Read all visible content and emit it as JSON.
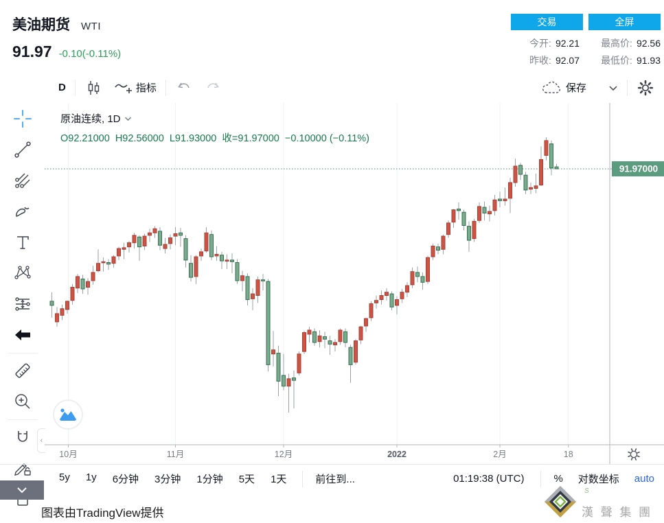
{
  "header": {
    "title": "美油期货",
    "symbol": "WTI",
    "price": "91.97",
    "change": "-0.10(-0.11%)",
    "change_color": "#2b9e58",
    "buttons": {
      "trade": "交易",
      "fullscreen": "全屏",
      "button_color": "#10a7ea"
    },
    "stats": [
      {
        "label": "今开:",
        "value": "92.21"
      },
      {
        "label": "最高价:",
        "value": "92.56"
      },
      {
        "label": "昨收:",
        "value": "92.07"
      },
      {
        "label": "最低价:",
        "value": "91.93"
      }
    ]
  },
  "toolbar": {
    "interval": "D",
    "indicators_label": "指标",
    "save_label": "保存",
    "icons": [
      "candlestick-style-icon",
      "indicator-icon",
      "undo-icon",
      "redo-icon",
      "cloud-icon",
      "chevron-down-icon",
      "gear-icon"
    ]
  },
  "sidebar": {
    "tools": [
      "crosshair",
      "trend-line",
      "gann-tools",
      "brush",
      "text-tool",
      "xabcd-pattern",
      "forecast",
      "arrow-marker",
      "ruler",
      "zoom-in",
      "magnet",
      "drawing-lock",
      "lock"
    ]
  },
  "legend": {
    "series": "原油连续, 1D",
    "ohlc": "O92.21000  H92.56000  L91.93000  收=91.97000  −0.10000 (−0.11%)"
  },
  "price_axis": {
    "last_label": "91.97000",
    "label_bg": "#5a9c7d"
  },
  "bottom_bar": {
    "ranges": [
      "5y",
      "1y",
      "6分钟",
      "3分钟",
      "1分钟",
      "5天",
      "1天"
    ],
    "goto": "前往到...",
    "clock": "01:19:38 (UTC)",
    "percent": "%",
    "log": "对数坐标",
    "auto": "auto"
  },
  "footer": {
    "attribution": "图表由TradingView提供",
    "brand": "漢 聲 集 團",
    "brand_mark": "S"
  },
  "chart_data": {
    "type": "candlestick",
    "title": "原油连续, 1D (WTI)",
    "legend_last_bar": {
      "open": 92.21,
      "high": 92.56,
      "low": 91.93,
      "close": 91.97,
      "change": -0.1,
      "change_pct": -0.11,
      "prev_close": 92.07
    },
    "colors": {
      "up_fill": "#cb5447",
      "up_border": "#ab3f34",
      "down_fill": "#7aab8f",
      "down_border": "#35704f",
      "wick": "#9aa0a8",
      "last_line": "#3f9b72",
      "grid": "#edf1f9"
    },
    "convention": "red = up day, green = down day",
    "x_ticks": [
      {
        "label": "10月",
        "i": 3.2,
        "bold": false
      },
      {
        "label": "11月",
        "i": 24,
        "bold": false
      },
      {
        "label": "12月",
        "i": 45,
        "bold": false
      },
      {
        "label": "2022",
        "i": 67,
        "bold": true
      },
      {
        "label": "2月",
        "i": 87,
        "bold": false
      },
      {
        "label": "18",
        "i": 100.3,
        "bold": false
      }
    ],
    "y_axis_labels_visible": false,
    "candles_note": "OHLC estimated from pixels; array order = [open, high, low, close], daily bars Sep 28 2021 → Feb 16 2022",
    "candles": [
      [
        75.9,
        77.0,
        73.9,
        75.4
      ],
      [
        73.4,
        75.2,
        72.8,
        74.4
      ],
      [
        74.2,
        75.5,
        73.6,
        75.0
      ],
      [
        74.9,
        76.0,
        74.4,
        75.9
      ],
      [
        76.0,
        78.0,
        75.5,
        77.6
      ],
      [
        77.5,
        79.2,
        76.9,
        78.9
      ],
      [
        78.6,
        79.1,
        76.8,
        77.4
      ],
      [
        77.6,
        78.7,
        76.7,
        78.3
      ],
      [
        78.4,
        80.2,
        77.9,
        79.4
      ],
      [
        79.6,
        82.2,
        79.4,
        80.5
      ],
      [
        80.6,
        81.2,
        79.5,
        80.7
      ],
      [
        80.6,
        81.0,
        79.7,
        80.4
      ],
      [
        80.5,
        81.5,
        80.0,
        81.3
      ],
      [
        81.4,
        82.5,
        80.9,
        82.3
      ],
      [
        82.2,
        83.0,
        81.0,
        82.4
      ],
      [
        82.5,
        83.2,
        81.8,
        83.0
      ],
      [
        83.0,
        84.2,
        82.3,
        83.9
      ],
      [
        83.7,
        83.9,
        80.8,
        82.5
      ],
      [
        82.6,
        84.1,
        82.1,
        83.8
      ],
      [
        83.9,
        84.7,
        83.1,
        84.2
      ],
      [
        84.2,
        85.0,
        83.6,
        84.7
      ],
      [
        84.4,
        84.9,
        82.1,
        82.7
      ],
      [
        82.3,
        83.6,
        81.7,
        82.8
      ],
      [
        82.9,
        84.0,
        82.2,
        83.6
      ],
      [
        83.8,
        84.9,
        82.7,
        84.1
      ],
      [
        84.2,
        84.8,
        82.5,
        83.9
      ],
      [
        83.5,
        83.9,
        80.0,
        80.9
      ],
      [
        80.5,
        81.5,
        78.3,
        78.8
      ],
      [
        78.9,
        81.5,
        78.0,
        81.3
      ],
      [
        81.4,
        82.3,
        80.8,
        81.9
      ],
      [
        82.0,
        84.9,
        81.8,
        84.2
      ],
      [
        84.0,
        84.5,
        80.9,
        81.3
      ],
      [
        81.4,
        82.6,
        80.8,
        81.6
      ],
      [
        81.5,
        81.9,
        79.8,
        80.8
      ],
      [
        80.8,
        81.6,
        79.8,
        80.9
      ],
      [
        80.9,
        81.7,
        79.3,
        80.7
      ],
      [
        80.6,
        81.0,
        78.0,
        78.4
      ],
      [
        78.4,
        79.6,
        77.1,
        79.0
      ],
      [
        78.9,
        79.3,
        75.4,
        76.1
      ],
      [
        76.2,
        77.5,
        74.8,
        76.8
      ],
      [
        76.6,
        78.9,
        75.7,
        78.5
      ],
      [
        78.5,
        79.2,
        77.2,
        78.4
      ],
      [
        78.3,
        78.6,
        67.4,
        68.2
      ],
      [
        69.5,
        72.3,
        68.0,
        70.0
      ],
      [
        69.6,
        70.5,
        64.4,
        66.2
      ],
      [
        66.9,
        69.5,
        65.1,
        65.6
      ],
      [
        65.6,
        67.1,
        62.4,
        66.5
      ],
      [
        66.6,
        67.5,
        62.9,
        66.3
      ],
      [
        67.2,
        69.8,
        66.9,
        69.5
      ],
      [
        69.8,
        72.3,
        69.5,
        72.1
      ],
      [
        71.9,
        72.8,
        70.9,
        72.4
      ],
      [
        72.2,
        72.6,
        70.5,
        70.9
      ],
      [
        71.0,
        72.4,
        70.3,
        71.7
      ],
      [
        71.6,
        72.2,
        70.2,
        71.3
      ],
      [
        71.1,
        71.7,
        69.4,
        70.7
      ],
      [
        70.6,
        71.3,
        69.8,
        70.9
      ],
      [
        71.0,
        72.6,
        70.6,
        72.4
      ],
      [
        72.2,
        72.6,
        70.3,
        70.9
      ],
      [
        70.3,
        70.6,
        66.0,
        68.2
      ],
      [
        68.5,
        71.3,
        68.2,
        71.1
      ],
      [
        71.2,
        72.9,
        70.7,
        72.8
      ],
      [
        72.9,
        73.9,
        72.2,
        73.8
      ],
      [
        73.9,
        75.9,
        73.5,
        75.6
      ],
      [
        75.7,
        76.6,
        75.0,
        76.0
      ],
      [
        76.1,
        77.2,
        75.5,
        76.6
      ],
      [
        76.6,
        77.5,
        76.0,
        77.0
      ],
      [
        76.8,
        77.1,
        74.8,
        75.2
      ],
      [
        75.4,
        76.5,
        74.3,
        76.1
      ],
      [
        76.2,
        77.4,
        75.7,
        77.0
      ],
      [
        77.0,
        78.2,
        76.4,
        77.8
      ],
      [
        77.9,
        80.0,
        77.5,
        79.5
      ],
      [
        79.4,
        80.1,
        78.2,
        78.9
      ],
      [
        78.9,
        79.4,
        77.3,
        78.2
      ],
      [
        78.3,
        81.4,
        78.0,
        81.2
      ],
      [
        81.3,
        82.9,
        80.9,
        82.6
      ],
      [
        82.5,
        82.9,
        81.6,
        82.1
      ],
      [
        82.2,
        84.0,
        81.6,
        83.8
      ],
      [
        84.0,
        85.7,
        83.6,
        85.4
      ],
      [
        85.5,
        87.1,
        84.8,
        87.0
      ],
      [
        87.1,
        87.9,
        85.8,
        86.9
      ],
      [
        86.7,
        87.0,
        84.5,
        85.1
      ],
      [
        85.0,
        85.6,
        81.9,
        83.3
      ],
      [
        83.5,
        85.9,
        83.1,
        85.6
      ],
      [
        85.7,
        87.9,
        85.4,
        87.4
      ],
      [
        87.3,
        88.0,
        85.7,
        86.6
      ],
      [
        86.5,
        87.5,
        85.6,
        86.8
      ],
      [
        86.9,
        88.8,
        86.3,
        88.2
      ],
      [
        88.3,
        89.2,
        87.3,
        88.1
      ],
      [
        88.1,
        89.7,
        87.5,
        88.3
      ],
      [
        88.4,
        90.9,
        86.6,
        90.3
      ],
      [
        90.3,
        93.2,
        89.8,
        92.3
      ],
      [
        92.4,
        92.7,
        90.6,
        91.3
      ],
      [
        91.2,
        91.6,
        88.9,
        89.4
      ],
      [
        89.5,
        90.3,
        88.9,
        89.7
      ],
      [
        89.6,
        91.4,
        89.0,
        89.9
      ],
      [
        90.0,
        94.7,
        89.9,
        93.1
      ],
      [
        93.6,
        95.8,
        93.0,
        95.4
      ],
      [
        95.0,
        95.4,
        91.2,
        92.07
      ],
      [
        92.21,
        92.56,
        91.93,
        91.97
      ]
    ]
  }
}
